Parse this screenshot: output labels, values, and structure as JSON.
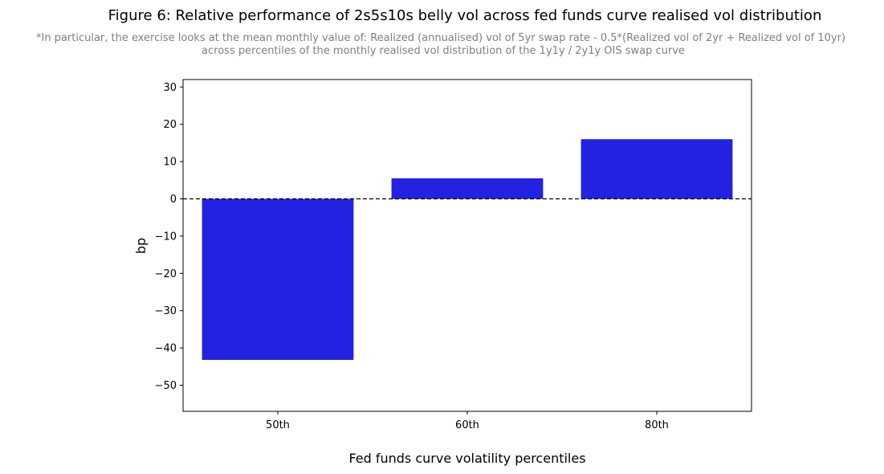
{
  "chart_data": {
    "type": "bar",
    "title": "Figure 6: Relative performance of 2s5s10s belly vol across fed funds curve realised vol distribution",
    "subtitle_lines": [
      "*In particular, the exercise looks at the mean monthly value of: Realized (annualised) vol of 5yr swap rate - 0.5*(Realized vol of 2yr + Realized vol of 10yr)",
      "across percentiles of the monthly realised vol distribution of the 1y1y / 2y1y OIS swap curve"
    ],
    "xlabel": "Fed funds curve volatility percentiles",
    "ylabel": "bp",
    "categories": [
      "50th",
      "60th",
      "80th"
    ],
    "values": [
      -43.2,
      5.5,
      16.0
    ],
    "ylim": [
      -57,
      32
    ],
    "yticks": [
      -50,
      -40,
      -30,
      -20,
      -10,
      0,
      10,
      20,
      30
    ],
    "ytick_labels": [
      "−50",
      "−40",
      "−30",
      "−20",
      "−10",
      "0",
      "10",
      "20",
      "30"
    ],
    "bar_color": "#2222e0",
    "zero_line": "dashed",
    "grid": false,
    "legend": "none"
  }
}
